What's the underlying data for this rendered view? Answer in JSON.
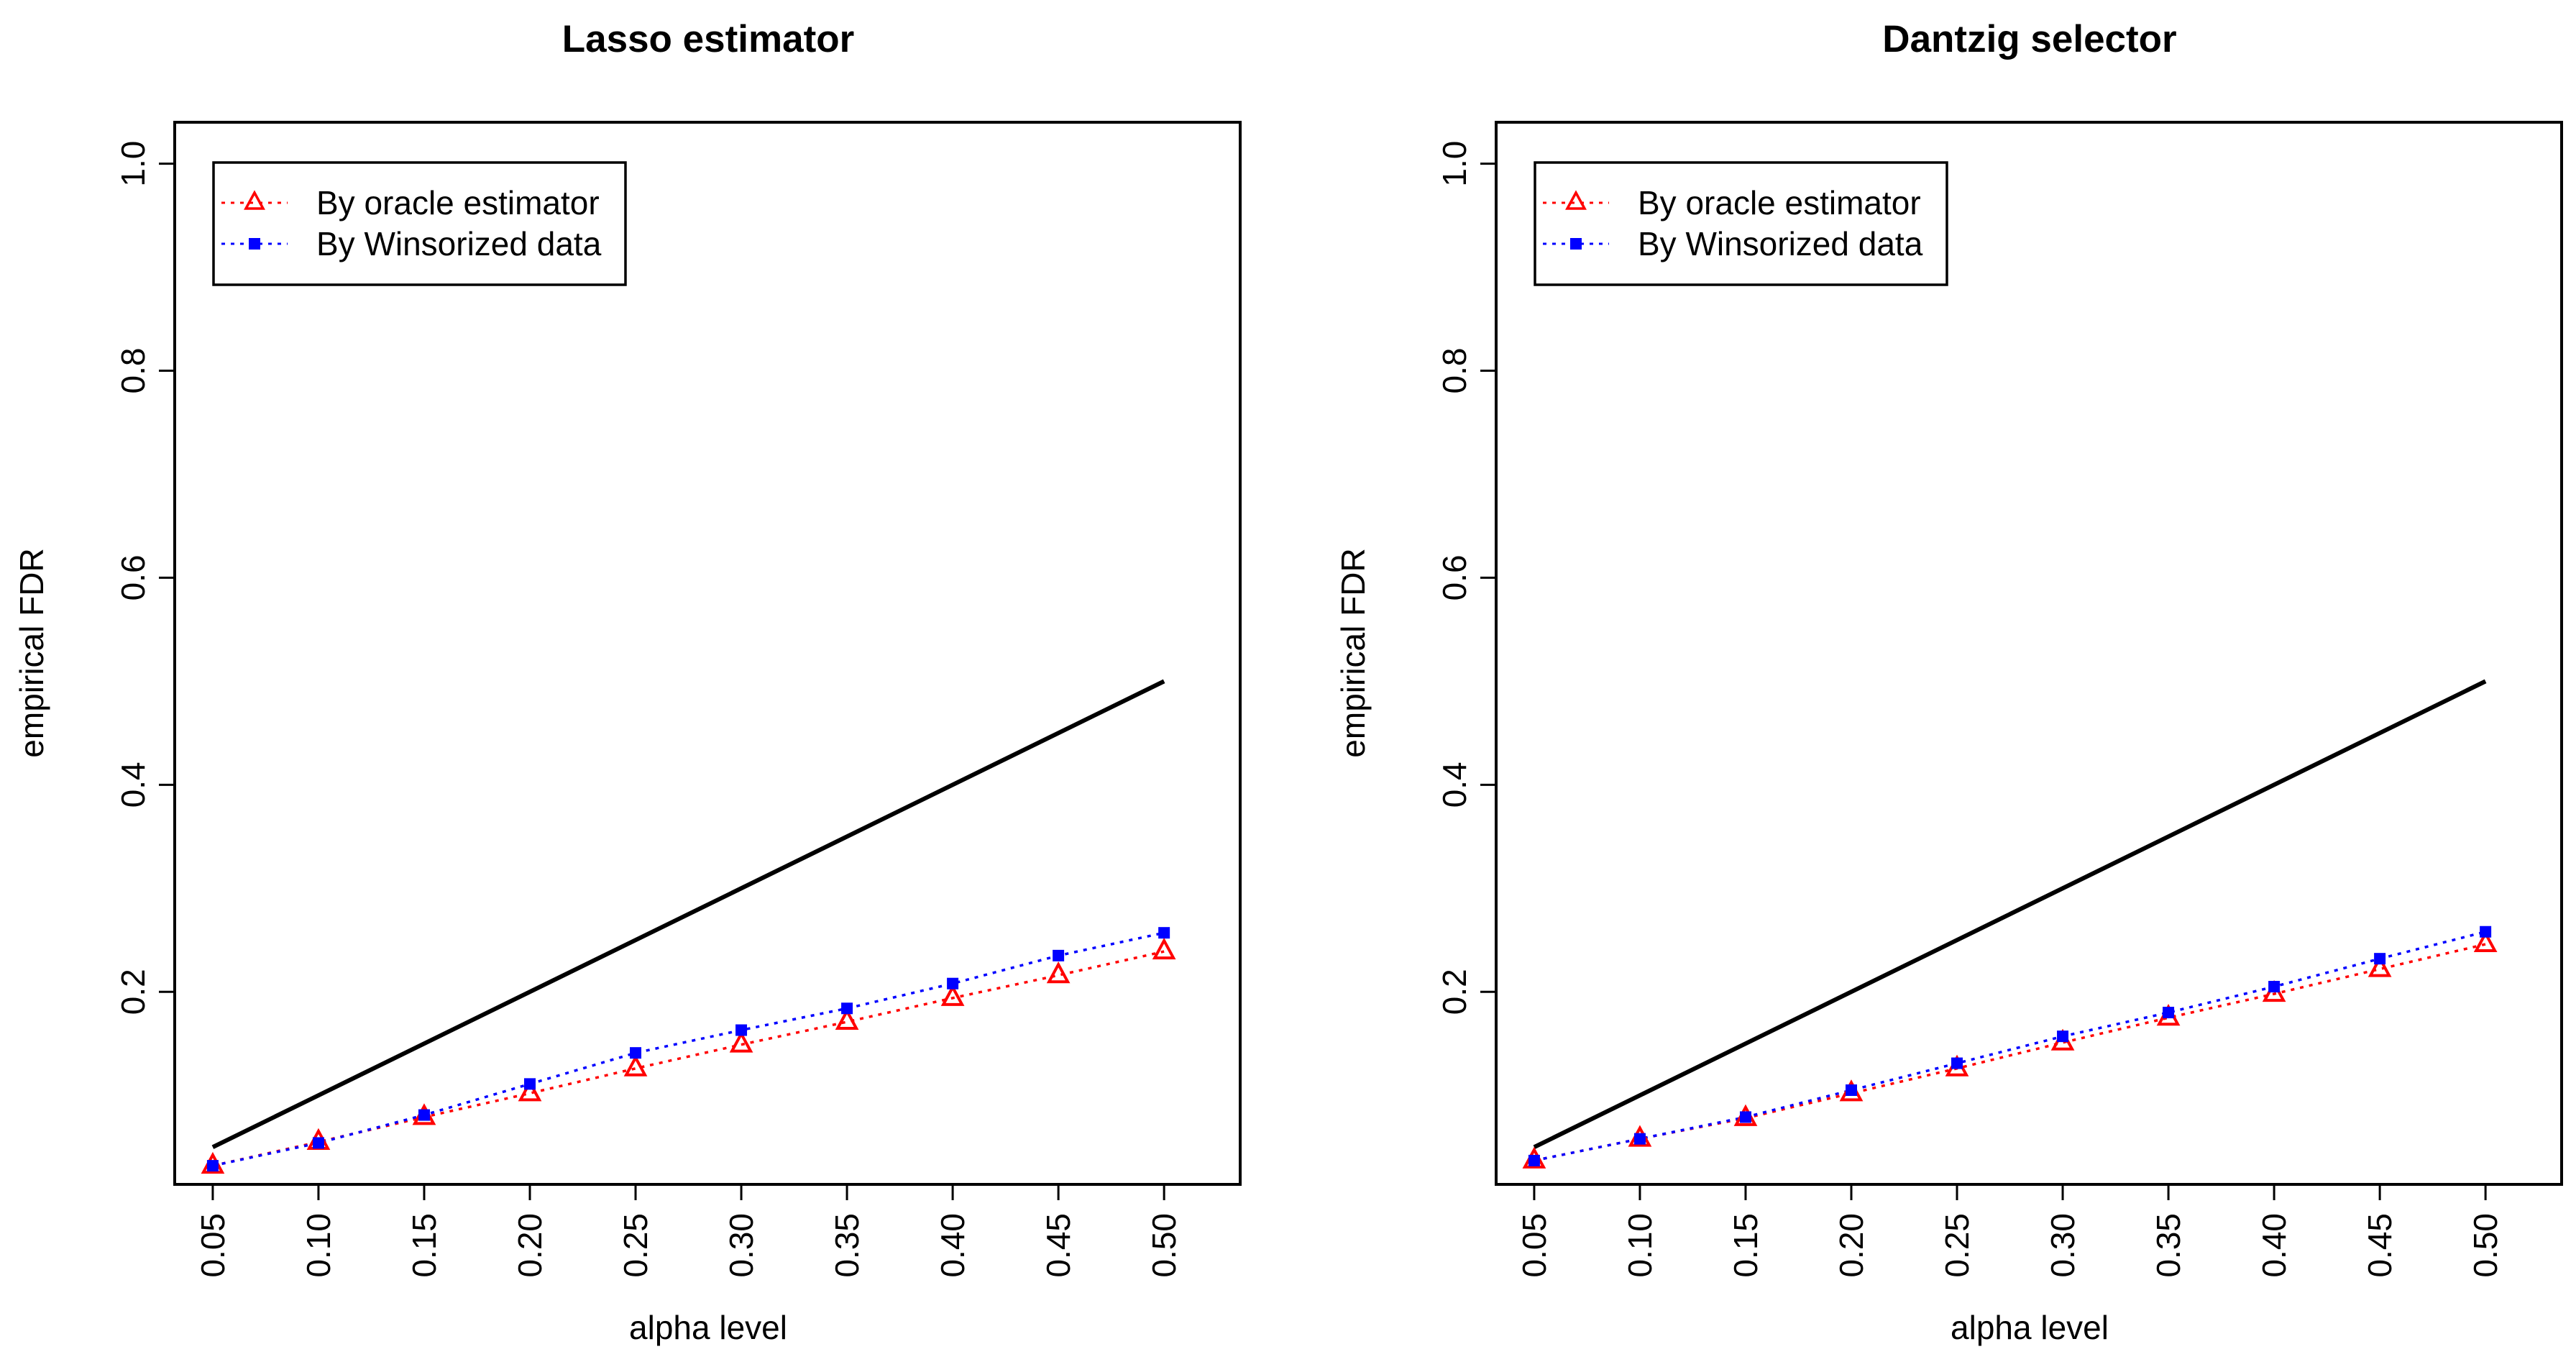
{
  "chart_data": [
    {
      "type": "line",
      "title": "Lasso estimator",
      "xlabel": "alpha level",
      "ylabel": "empirical FDR",
      "x": [
        0.05,
        0.1,
        0.15,
        0.2,
        0.25,
        0.3,
        0.35,
        0.4,
        0.45,
        0.5
      ],
      "x_tick_labels": [
        "0.05",
        "0.10",
        "0.15",
        "0.20",
        "0.25",
        "0.30",
        "0.35",
        "0.40",
        "0.45",
        "0.50"
      ],
      "y_ticks": [
        0.2,
        0.4,
        0.6,
        0.8,
        1.0
      ],
      "y_tick_labels": [
        "0.2",
        "0.4",
        "0.6",
        "0.8",
        "1.0"
      ],
      "xlim": [
        0.032,
        0.536
      ],
      "ylim": [
        0.014,
        1.04
      ],
      "grid": false,
      "legend_position": "top-left",
      "reference_line": {
        "name": "y = alpha",
        "color": "#000000",
        "x": [
          0.05,
          0.5
        ],
        "y": [
          0.05,
          0.5
        ]
      },
      "series": [
        {
          "name": "By oracle estimator",
          "color": "#ff0000",
          "marker": "triangle",
          "line_style": "dotted",
          "values": [
            0.032,
            0.055,
            0.079,
            0.102,
            0.126,
            0.149,
            0.171,
            0.194,
            0.216,
            0.239
          ]
        },
        {
          "name": "By Winsorized data",
          "color": "#0000ff",
          "marker": "square",
          "line_style": "dotted",
          "values": [
            0.032,
            0.054,
            0.081,
            0.111,
            0.141,
            0.163,
            0.184,
            0.208,
            0.235,
            0.257
          ]
        }
      ]
    },
    {
      "type": "line",
      "title": "Dantzig selector",
      "xlabel": "alpha level",
      "ylabel": "empirical FDR",
      "x": [
        0.05,
        0.1,
        0.15,
        0.2,
        0.25,
        0.3,
        0.35,
        0.4,
        0.45,
        0.5
      ],
      "x_tick_labels": [
        "0.05",
        "0.10",
        "0.15",
        "0.20",
        "0.25",
        "0.30",
        "0.35",
        "0.40",
        "0.45",
        "0.50"
      ],
      "y_ticks": [
        0.2,
        0.4,
        0.6,
        0.8,
        1.0
      ],
      "y_tick_labels": [
        "0.2",
        "0.4",
        "0.6",
        "0.8",
        "1.0"
      ],
      "xlim": [
        0.032,
        0.536
      ],
      "ylim": [
        0.014,
        1.04
      ],
      "grid": false,
      "legend_position": "top-left",
      "reference_line": {
        "name": "y = alpha",
        "color": "#000000",
        "x": [
          0.05,
          0.5
        ],
        "y": [
          0.05,
          0.5
        ]
      },
      "series": [
        {
          "name": "By oracle estimator",
          "color": "#ff0000",
          "marker": "triangle",
          "line_style": "dotted",
          "values": [
            0.037,
            0.058,
            0.078,
            0.102,
            0.126,
            0.151,
            0.175,
            0.198,
            0.222,
            0.246
          ]
        },
        {
          "name": "By Winsorized data",
          "color": "#0000ff",
          "marker": "square",
          "line_style": "dotted",
          "values": [
            0.037,
            0.058,
            0.079,
            0.105,
            0.131,
            0.157,
            0.18,
            0.205,
            0.232,
            0.258
          ]
        }
      ]
    }
  ]
}
